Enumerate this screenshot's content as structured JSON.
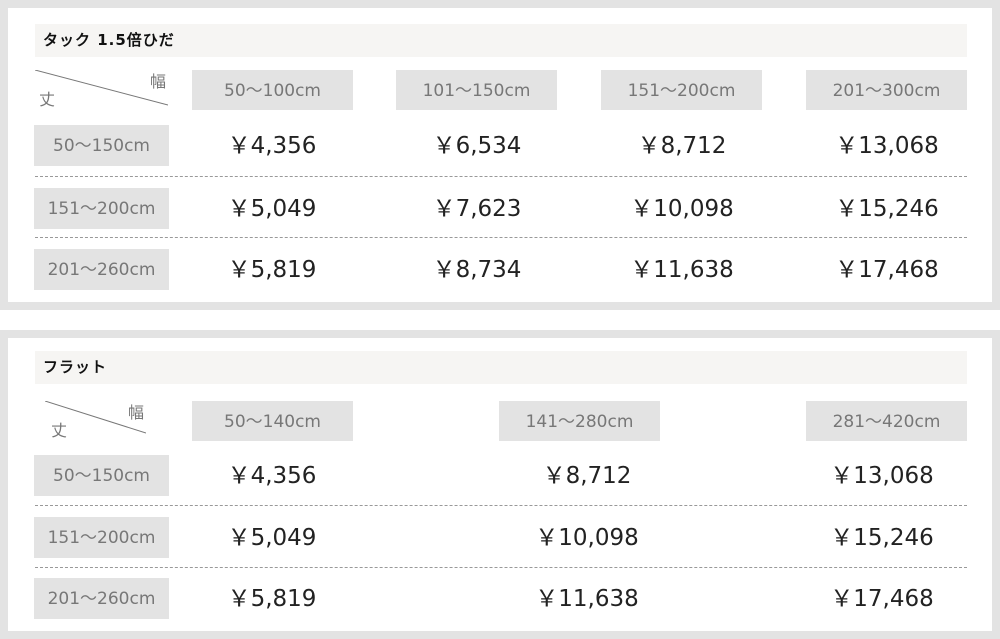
{
  "tables": [
    {
      "title": "タック 1.5倍ひだ",
      "corner": {
        "width_label": "幅",
        "height_label": "丈"
      },
      "columns": [
        "50〜100cm",
        "101〜150cm",
        "151〜200cm",
        "201〜300cm"
      ],
      "rows": [
        {
          "label": "50〜150cm",
          "prices": [
            "￥4,356",
            "￥6,534",
            "￥8,712",
            "￥13,068"
          ]
        },
        {
          "label": "151〜200cm",
          "prices": [
            "￥5,049",
            "￥7,623",
            "￥10,098",
            "￥15,246"
          ]
        },
        {
          "label": "201〜260cm",
          "prices": [
            "￥5,819",
            "￥8,734",
            "￥11,638",
            "￥17,468"
          ]
        }
      ]
    },
    {
      "title": "フラット",
      "corner": {
        "width_label": "幅",
        "height_label": "丈"
      },
      "columns": [
        "50〜140cm",
        "141〜280cm",
        "281〜420cm"
      ],
      "rows": [
        {
          "label": "50〜150cm",
          "prices": [
            "￥4,356",
            "￥8,712",
            "￥13,068"
          ]
        },
        {
          "label": "151〜200cm",
          "prices": [
            "￥5,049",
            "￥10,098",
            "￥15,246"
          ]
        },
        {
          "label": "201〜260cm",
          "prices": [
            "￥5,819",
            "￥11,638",
            "￥17,468"
          ]
        }
      ]
    }
  ]
}
